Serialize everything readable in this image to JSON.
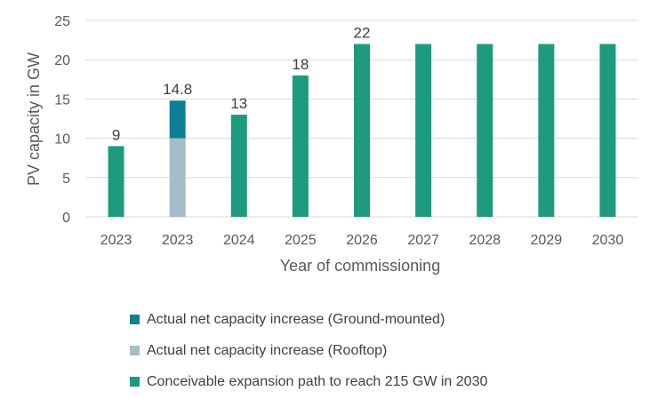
{
  "chart_data": {
    "type": "bar",
    "stacked": true,
    "categories": [
      "2023",
      "2023",
      "2024",
      "2025",
      "2026",
      "2027",
      "2028",
      "2029",
      "2030"
    ],
    "series": [
      {
        "name": "Conceivable expansion path to reach 215 GW in 2030",
        "color": "#1e9a7e",
        "values": [
          9,
          0,
          13,
          18,
          22,
          22,
          22,
          22,
          22
        ]
      },
      {
        "name": "Actual net capacity increase (Rooftop)",
        "color": "#a6bcc8",
        "values": [
          0,
          10,
          0,
          0,
          0,
          0,
          0,
          0,
          0
        ]
      },
      {
        "name": "Actual net capacity increase (Ground-mounted)",
        "color": "#0f7f95",
        "values": [
          0,
          4.8,
          0,
          0,
          0,
          0,
          0,
          0,
          0
        ]
      }
    ],
    "data_labels": [
      "9",
      "14.8",
      "13",
      "18",
      "22",
      "",
      "",
      "",
      ""
    ],
    "xlabel": "Year of commissioning",
    "ylabel": "PV capacity in GW",
    "ylim": [
      0,
      25
    ],
    "yticks": [
      "0",
      "5",
      "10",
      "15",
      "20",
      "25"
    ],
    "grid": true,
    "legend_position": "bottom",
    "legend_order": [
      "Actual net capacity increase (Ground-mounted)",
      "Actual net capacity increase (Rooftop)",
      "Conceivable expansion path to reach 215 GW in 2030"
    ]
  }
}
